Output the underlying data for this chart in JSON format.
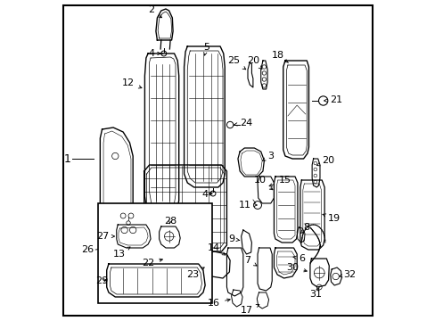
{
  "bg": "#ffffff",
  "lc": "#000000",
  "fig_w": 4.89,
  "fig_h": 3.6,
  "dpi": 100,
  "border": [
    0.018,
    0.018,
    0.982,
    0.982
  ]
}
